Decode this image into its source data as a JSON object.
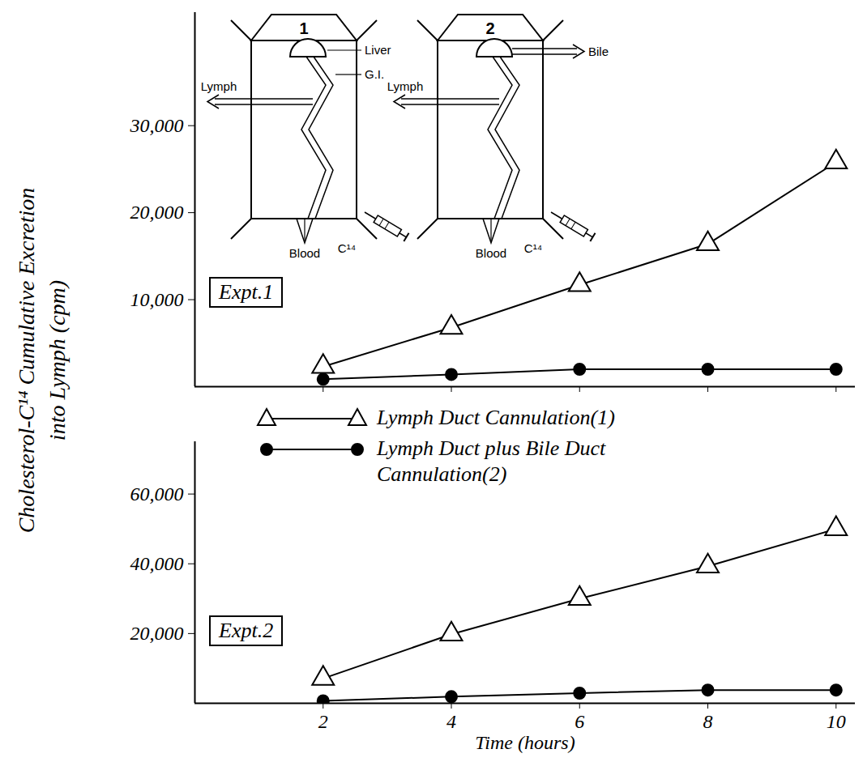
{
  "chart_data": [
    {
      "type": "line",
      "title": "Expt.1",
      "y_label": "Cholesterol-C¹⁴ Cumulative Excretion into Lymph (cpm)",
      "x": [
        2,
        4,
        6,
        8,
        10
      ],
      "xlim": [
        0,
        10.3
      ],
      "xticks": [
        2,
        4,
        6,
        8,
        10
      ],
      "ylim": [
        0,
        43000
      ],
      "yticks": [
        {
          "value": 10000,
          "label": "10,000"
        },
        {
          "value": 20000,
          "label": "20,000"
        },
        {
          "value": 30000,
          "label": "30,000"
        }
      ],
      "tick_labels": "y",
      "legend": "bottom",
      "series": [
        {
          "name": "Lymph Duct Cannulation(1)",
          "color": "#000000",
          "marker": "open-triangle",
          "line_style": "solid",
          "values": [
            2300,
            6800,
            11700,
            16400,
            25800
          ]
        },
        {
          "name": "Lymph Duct plus Bile Duct Cannulation(2)",
          "color": "#000000",
          "marker": "filled-circle",
          "line_style": "solid",
          "values": [
            850,
            1400,
            2000,
            2000,
            2000
          ]
        }
      ]
    },
    {
      "type": "line",
      "title": "Expt.2",
      "x_label": "Time (hours)",
      "x": [
        2,
        4,
        6,
        8,
        10
      ],
      "xlim": [
        0,
        10.3
      ],
      "xticks": [
        2,
        4,
        6,
        8,
        10
      ],
      "ylim": [
        0,
        75000
      ],
      "yticks": [
        {
          "value": 20000,
          "label": "20,000"
        },
        {
          "value": 40000,
          "label": "40,000"
        },
        {
          "value": 60000,
          "label": "60,000"
        }
      ],
      "series": [
        {
          "name": "Lymph Duct Cannulation(1)",
          "color": "#000000",
          "marker": "open-triangle",
          "line_style": "solid",
          "values": [
            7100,
            19800,
            30000,
            39300,
            50000
          ]
        },
        {
          "name": "Lymph Duct plus Bile Duct Cannulation(2)",
          "color": "#000000",
          "marker": "filled-circle",
          "line_style": "solid",
          "values": [
            700,
            1900,
            2900,
            3800,
            3800
          ]
        }
      ]
    }
  ],
  "inset": {
    "panels": [
      {
        "number": "1",
        "liver": "Liver",
        "gi": "G.I.",
        "lymph": "Lymph",
        "blood": "Blood",
        "tracer": "C¹⁴"
      },
      {
        "number": "2",
        "bile": "Bile",
        "lymph": "Lymph",
        "blood": "Blood",
        "tracer": "C¹⁴"
      }
    ]
  }
}
